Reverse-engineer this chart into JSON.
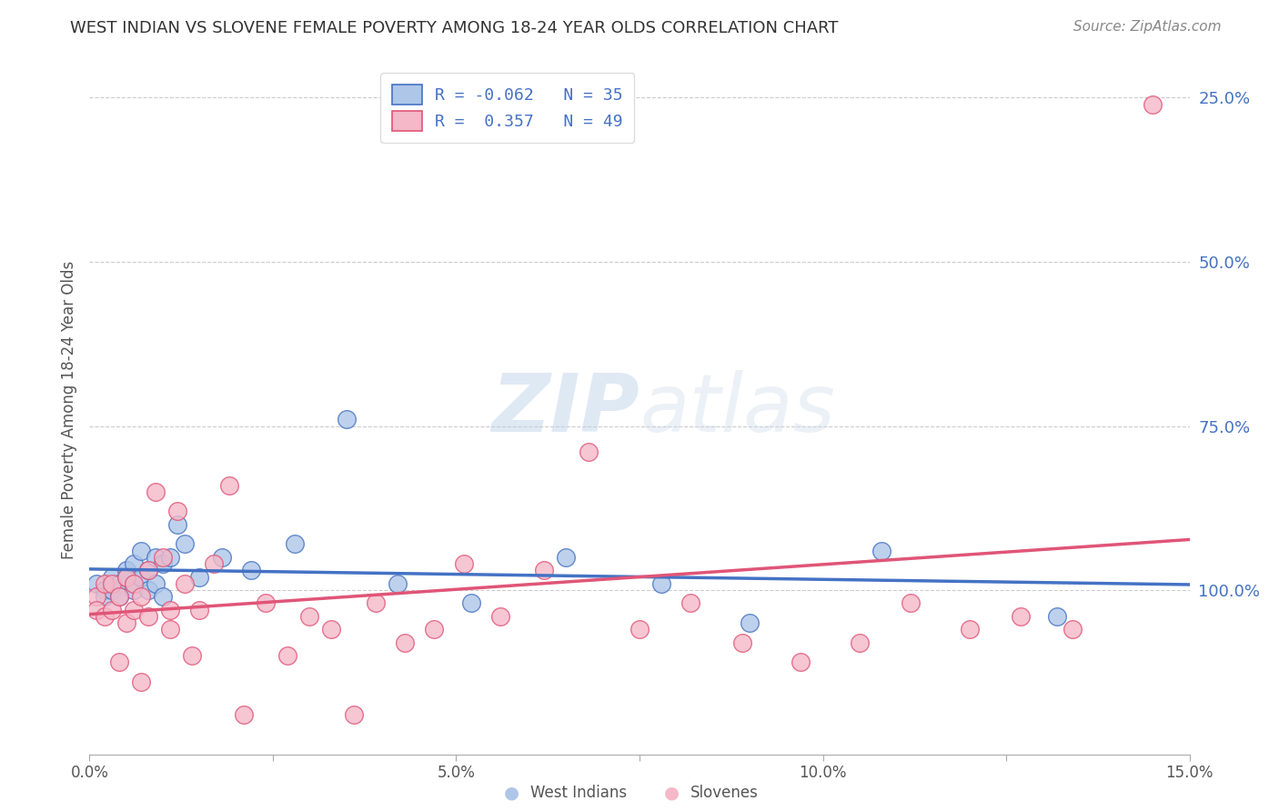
{
  "title": "WEST INDIAN VS SLOVENE FEMALE POVERTY AMONG 18-24 YEAR OLDS CORRELATION CHART",
  "source": "Source: ZipAtlas.com",
  "ylabel": "Female Poverty Among 18-24 Year Olds",
  "ylabel_right_ticks": [
    "100.0%",
    "75.0%",
    "50.0%",
    "25.0%"
  ],
  "ylabel_right_vals": [
    1.0,
    0.75,
    0.5,
    0.25
  ],
  "west_indian_R": -0.062,
  "west_indian_N": 35,
  "slovene_R": 0.357,
  "slovene_N": 49,
  "west_indian_color": "#aec6e8",
  "slovene_color": "#f4b8c8",
  "west_indian_line_color": "#4472c4",
  "slovene_line_color": "#e05577",
  "west_indian_x": [
    0.001,
    0.002,
    0.002,
    0.003,
    0.003,
    0.004,
    0.004,
    0.005,
    0.005,
    0.006,
    0.006,
    0.006,
    0.007,
    0.007,
    0.008,
    0.008,
    0.009,
    0.009,
    0.01,
    0.01,
    0.011,
    0.012,
    0.013,
    0.015,
    0.018,
    0.022,
    0.028,
    0.035,
    0.042,
    0.052,
    0.065,
    0.078,
    0.09,
    0.108,
    0.132
  ],
  "west_indian_y": [
    0.26,
    0.25,
    0.24,
    0.27,
    0.25,
    0.26,
    0.24,
    0.28,
    0.27,
    0.26,
    0.29,
    0.25,
    0.31,
    0.27,
    0.28,
    0.25,
    0.3,
    0.26,
    0.29,
    0.24,
    0.3,
    0.35,
    0.32,
    0.27,
    0.3,
    0.28,
    0.32,
    0.51,
    0.26,
    0.23,
    0.3,
    0.26,
    0.2,
    0.31,
    0.21
  ],
  "slovene_x": [
    0.001,
    0.001,
    0.002,
    0.002,
    0.003,
    0.003,
    0.004,
    0.004,
    0.005,
    0.005,
    0.006,
    0.006,
    0.007,
    0.007,
    0.008,
    0.008,
    0.009,
    0.01,
    0.011,
    0.011,
    0.012,
    0.013,
    0.014,
    0.015,
    0.017,
    0.019,
    0.021,
    0.024,
    0.027,
    0.03,
    0.033,
    0.036,
    0.039,
    0.043,
    0.047,
    0.051,
    0.056,
    0.062,
    0.068,
    0.075,
    0.082,
    0.089,
    0.097,
    0.105,
    0.112,
    0.12,
    0.127,
    0.134,
    0.145
  ],
  "slovene_y": [
    0.24,
    0.22,
    0.26,
    0.21,
    0.26,
    0.22,
    0.24,
    0.14,
    0.27,
    0.2,
    0.26,
    0.22,
    0.24,
    0.11,
    0.28,
    0.21,
    0.4,
    0.3,
    0.22,
    0.19,
    0.37,
    0.26,
    0.15,
    0.22,
    0.29,
    0.41,
    0.06,
    0.23,
    0.15,
    0.21,
    0.19,
    0.06,
    0.23,
    0.17,
    0.19,
    0.29,
    0.21,
    0.28,
    0.46,
    0.19,
    0.23,
    0.17,
    0.14,
    0.17,
    0.23,
    0.19,
    0.21,
    0.19,
    0.99
  ],
  "background_color": "#ffffff",
  "grid_color": "#cccccc",
  "title_color": "#333333",
  "watermark_text": "ZIPatlas",
  "xmin": 0.0,
  "xmax": 0.15,
  "ymin": 0.0,
  "ymax": 1.05,
  "xticks": [
    0.0,
    0.025,
    0.05,
    0.075,
    0.1,
    0.125,
    0.15
  ],
  "xticklabels": [
    "0.0%",
    "",
    "5.0%",
    "",
    "10.0%",
    "",
    "15.0%"
  ]
}
